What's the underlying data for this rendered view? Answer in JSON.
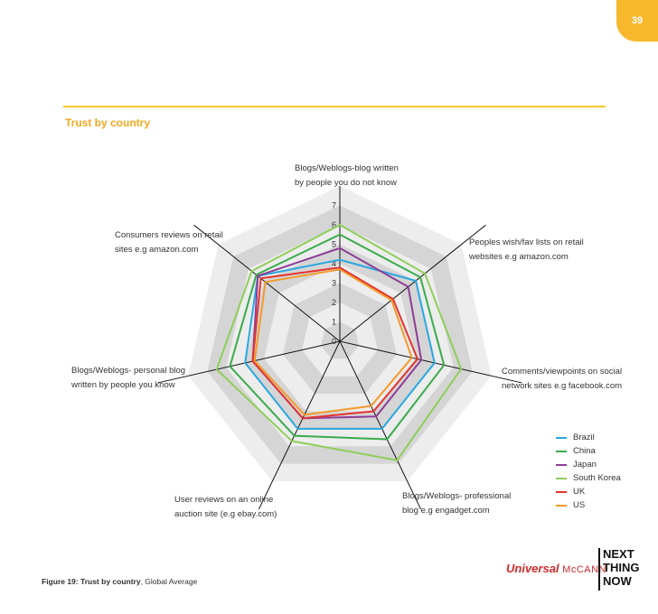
{
  "page": {
    "number": "39",
    "section_title": "Trust by country"
  },
  "caption": {
    "bold": "Figure 19: Trust by country",
    "rest": ", Global Average"
  },
  "brand": {
    "name": "Universal",
    "sub": "McCANN",
    "logo": "NEXT\nTHING\nNOW"
  },
  "chart_data": {
    "type": "radar",
    "title": "Trust by country",
    "rlim": [
      0,
      7
    ],
    "ticks": [
      "0",
      "1",
      "2",
      "3",
      "4",
      "5",
      "6",
      "7"
    ],
    "axes": [
      "Blogs/Weblogs-blog written\nby people you do not know",
      "Peoples wish/fav lists on retail\nwebsites e.g amazon.com",
      "Comments/viewpoints on social\nnetwork sites e.g facebook.com",
      "Blogs/Weblogs- professional\nblog e.g engadget.com",
      "User reviews on an online\nauction site (e.g ebay.com)",
      "Blogs/Weblogs- personal blog\nwritten by people you know",
      "Consumers reviews on retail\nsites e.g amazon.com"
    ],
    "series": [
      {
        "name": "Brazil",
        "color": "#29a8df",
        "values": [
          4.2,
          5.0,
          5.0,
          5.0,
          5.0,
          5.0,
          5.4
        ]
      },
      {
        "name": "China",
        "color": "#3aab4b",
        "values": [
          5.5,
          5.3,
          5.5,
          5.6,
          5.4,
          5.8,
          5.5
        ]
      },
      {
        "name": "Japan",
        "color": "#8e3d96",
        "values": [
          4.8,
          4.5,
          4.3,
          4.3,
          4.4,
          4.6,
          5.4
        ]
      },
      {
        "name": "South Korea",
        "color": "#8fcd5a",
        "values": [
          6.0,
          5.6,
          6.4,
          6.8,
          5.7,
          6.5,
          5.8
        ]
      },
      {
        "name": "UK",
        "color": "#e3342f",
        "values": [
          3.8,
          3.5,
          4.1,
          4.0,
          4.4,
          4.6,
          5.2
        ]
      },
      {
        "name": "US",
        "color": "#f39a2b",
        "values": [
          3.7,
          3.4,
          3.8,
          3.7,
          4.2,
          4.5,
          4.9
        ]
      }
    ]
  }
}
